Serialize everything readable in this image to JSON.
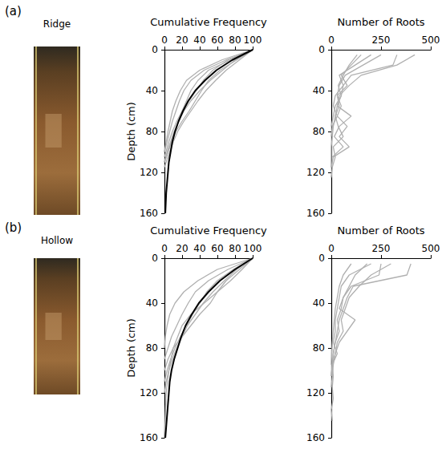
{
  "chart_data": [
    {
      "type": "line",
      "annotations": [
        "(a)",
        "Ridge"
      ],
      "xlabel": "Cumulative Frequency",
      "ylabel": "Depth (cm)",
      "xlim": [
        0,
        100
      ],
      "xticks": [
        0,
        20,
        40,
        60,
        80,
        100
      ],
      "ylim": [
        0,
        160
      ],
      "yticks": [
        0,
        40,
        80,
        120,
        160
      ],
      "grid": false,
      "series": [
        {
          "color": "#b0b0b0",
          "x": [
            100,
            70,
            45,
            30,
            22,
            17,
            13,
            9,
            6,
            3,
            0
          ],
          "y": [
            0,
            10,
            20,
            30,
            40,
            50,
            60,
            70,
            80,
            90,
            100
          ]
        },
        {
          "color": "#b0b0b0",
          "x": [
            100,
            80,
            66,
            52,
            40,
            30,
            22,
            16,
            11,
            7,
            3,
            0
          ],
          "y": [
            0,
            10,
            20,
            30,
            40,
            50,
            60,
            70,
            80,
            90,
            100,
            110
          ]
        },
        {
          "color": "#b0b0b0",
          "x": [
            100,
            75,
            50,
            38,
            30,
            20,
            12,
            4,
            0
          ],
          "y": [
            0,
            10,
            20,
            30,
            40,
            60,
            80,
            100,
            110
          ]
        },
        {
          "color": "#b0b0b0",
          "x": [
            100,
            85,
            70,
            58,
            47,
            38,
            30,
            22,
            15,
            10,
            6,
            2,
            0
          ],
          "y": [
            0,
            10,
            20,
            30,
            40,
            50,
            60,
            70,
            80,
            90,
            100,
            110,
            115
          ]
        },
        {
          "color": "#b0b0b0",
          "x": [
            100,
            65,
            40,
            25,
            18,
            13,
            9,
            4,
            0
          ],
          "y": [
            0,
            10,
            20,
            30,
            40,
            50,
            60,
            80,
            100
          ]
        },
        {
          "color": "#b0b0b0",
          "x": [
            100,
            82,
            63,
            50,
            42,
            35,
            28,
            20,
            13,
            8,
            4,
            0
          ],
          "y": [
            0,
            10,
            20,
            30,
            40,
            50,
            60,
            70,
            80,
            90,
            100,
            110
          ]
        },
        {
          "color": "#b0b0b0",
          "x": [
            100,
            72,
            55,
            44,
            36,
            28,
            20,
            14,
            9,
            5,
            0
          ],
          "y": [
            0,
            10,
            20,
            30,
            40,
            50,
            60,
            70,
            80,
            90,
            105
          ]
        },
        {
          "color": "#000000",
          "x": [
            100,
            77,
            59,
            46,
            35,
            27,
            21,
            16,
            12,
            9,
            7,
            5,
            4,
            2,
            1
          ],
          "y": [
            0,
            10,
            20,
            30,
            40,
            50,
            60,
            70,
            80,
            90,
            100,
            110,
            120,
            140,
            160
          ]
        }
      ]
    },
    {
      "type": "line",
      "xlabel": "Number of Roots",
      "xlim": [
        0,
        500
      ],
      "xticks": [
        0,
        250,
        500
      ],
      "ylim": [
        0,
        160
      ],
      "yticks": [
        0,
        40,
        80,
        120,
        160
      ],
      "grid": false,
      "series": [
        {
          "color": "#b0b0b0",
          "x": [
            420,
            330,
            150,
            90,
            40,
            30,
            20,
            10,
            5,
            0,
            0,
            0
          ],
          "y": [
            5,
            15,
            25,
            35,
            45,
            55,
            65,
            75,
            85,
            95,
            105,
            115
          ]
        },
        {
          "color": "#b0b0b0",
          "x": [
            330,
            310,
            100,
            60,
            50,
            30,
            100,
            40,
            15,
            60,
            5
          ],
          "y": [
            5,
            15,
            25,
            35,
            45,
            55,
            65,
            75,
            85,
            95,
            105
          ]
        },
        {
          "color": "#b0b0b0",
          "x": [
            250,
            160,
            70,
            40,
            30,
            50,
            30,
            80,
            40,
            90,
            10,
            0
          ],
          "y": [
            5,
            15,
            25,
            35,
            45,
            55,
            65,
            75,
            85,
            95,
            105,
            115
          ]
        },
        {
          "color": "#b0b0b0",
          "x": [
            130,
            90,
            60,
            35,
            50,
            20,
            10,
            0
          ],
          "y": [
            5,
            15,
            25,
            35,
            45,
            55,
            65,
            75
          ]
        },
        {
          "color": "#b0b0b0",
          "x": [
            200,
            120,
            40,
            60,
            20,
            10,
            30,
            5,
            0
          ],
          "y": [
            5,
            15,
            25,
            35,
            45,
            55,
            65,
            75,
            85
          ]
        },
        {
          "color": "#b0b0b0",
          "x": [
            150,
            100,
            50,
            80,
            30,
            40,
            20,
            35,
            60,
            10,
            20,
            5,
            0
          ],
          "y": [
            5,
            15,
            25,
            35,
            45,
            55,
            65,
            75,
            85,
            95,
            105,
            115,
            125
          ]
        }
      ]
    },
    {
      "type": "line",
      "annotations": [
        "(b)",
        "Hollow"
      ],
      "xlabel": "Cumulative Frequency",
      "ylabel": "Depth (cm)",
      "xlim": [
        0,
        100
      ],
      "xticks": [
        0,
        20,
        40,
        60,
        80,
        100
      ],
      "ylim": [
        0,
        160
      ],
      "yticks": [
        0,
        40,
        80,
        120,
        160
      ],
      "grid": false,
      "series": [
        {
          "color": "#b0b0b0",
          "x": [
            100,
            60,
            38,
            22,
            12,
            6,
            3,
            1,
            0
          ],
          "y": [
            0,
            10,
            20,
            30,
            40,
            50,
            60,
            70,
            80
          ]
        },
        {
          "color": "#b0b0b0",
          "x": [
            100,
            85,
            70,
            60,
            52,
            40,
            30,
            20,
            10,
            4,
            0
          ],
          "y": [
            0,
            10,
            20,
            30,
            40,
            50,
            60,
            70,
            80,
            90,
            100
          ]
        },
        {
          "color": "#b0b0b0",
          "x": [
            100,
            78,
            60,
            48,
            40,
            32,
            25,
            18,
            12,
            7,
            3,
            0
          ],
          "y": [
            0,
            10,
            20,
            30,
            40,
            50,
            60,
            70,
            80,
            90,
            100,
            110
          ]
        },
        {
          "color": "#b0b0b0",
          "x": [
            100,
            82,
            68,
            55,
            44,
            35,
            26,
            20,
            14,
            9,
            5,
            2,
            0
          ],
          "y": [
            0,
            10,
            20,
            30,
            40,
            50,
            60,
            70,
            80,
            90,
            100,
            110,
            120
          ]
        },
        {
          "color": "#b0b0b0",
          "x": [
            100,
            72,
            50,
            35,
            27,
            20,
            14,
            8,
            4,
            0
          ],
          "y": [
            0,
            10,
            20,
            30,
            40,
            50,
            60,
            70,
            80,
            90
          ]
        },
        {
          "color": "#b0b0b0",
          "x": [
            100,
            88,
            75,
            60,
            45,
            30,
            20,
            10,
            5,
            2,
            1,
            0
          ],
          "y": [
            0,
            10,
            20,
            30,
            40,
            50,
            60,
            80,
            100,
            120,
            140,
            160
          ]
        },
        {
          "color": "#000000",
          "x": [
            100,
            80,
            63,
            50,
            39,
            31,
            24,
            19,
            15,
            11,
            8,
            6,
            5,
            3,
            1
          ],
          "y": [
            0,
            10,
            20,
            30,
            40,
            50,
            60,
            70,
            80,
            90,
            100,
            110,
            120,
            140,
            160
          ]
        }
      ]
    },
    {
      "type": "line",
      "xlabel": "Number of Roots",
      "xlim": [
        0,
        500
      ],
      "xticks": [
        0,
        250,
        500
      ],
      "ylim": [
        0,
        160
      ],
      "yticks": [
        0,
        40,
        80,
        120,
        160
      ],
      "grid": false,
      "series": [
        {
          "color": "#b0b0b0",
          "x": [
            250,
            240,
            100,
            60,
            40,
            120,
            80,
            40,
            20,
            5,
            0
          ],
          "y": [
            5,
            15,
            25,
            35,
            45,
            55,
            65,
            75,
            85,
            95,
            105
          ]
        },
        {
          "color": "#b0b0b0",
          "x": [
            400,
            380,
            110,
            80,
            60,
            40,
            30,
            20,
            10,
            5,
            0
          ],
          "y": [
            5,
            15,
            25,
            35,
            45,
            55,
            65,
            75,
            85,
            95,
            105
          ]
        },
        {
          "color": "#b0b0b0",
          "x": [
            180,
            120,
            90,
            60,
            50,
            30,
            40,
            20,
            10,
            5,
            0
          ],
          "y": [
            5,
            15,
            25,
            35,
            45,
            55,
            65,
            75,
            85,
            95,
            105
          ]
        },
        {
          "color": "#b0b0b0",
          "x": [
            100,
            60,
            40,
            30,
            20,
            15,
            10,
            5,
            2,
            0
          ],
          "y": [
            5,
            15,
            25,
            35,
            45,
            55,
            65,
            75,
            85,
            95
          ]
        },
        {
          "color": "#b0b0b0",
          "x": [
            300,
            200,
            140,
            90,
            70,
            50,
            60,
            30,
            20,
            10,
            5,
            0
          ],
          "y": [
            5,
            15,
            25,
            35,
            45,
            55,
            65,
            75,
            85,
            95,
            105,
            115
          ]
        },
        {
          "color": "#b0b0b0",
          "x": [
            200,
            90,
            50,
            40,
            30,
            20,
            20,
            10,
            30,
            5,
            10,
            5,
            10,
            0,
            5
          ],
          "y": [
            5,
            15,
            25,
            35,
            45,
            55,
            65,
            75,
            85,
            95,
            105,
            115,
            125,
            135,
            145
          ]
        }
      ]
    }
  ]
}
